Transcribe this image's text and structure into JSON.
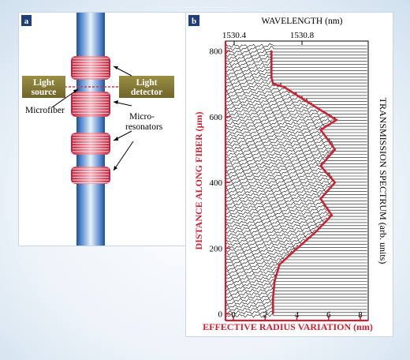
{
  "panel_a": {
    "badge": "a",
    "light_source": [
      "Light",
      "source"
    ],
    "light_detector": [
      "Light",
      "detector"
    ],
    "microfiber": "Microfiber",
    "microresonators": [
      "Micro-",
      "resonators"
    ],
    "colors": {
      "fiber_core": "#3a6fb5",
      "resonator": "#d8354a",
      "label_box": "#8a7d35",
      "label_text": "#ffffff"
    }
  },
  "panel_b": {
    "badge": "b",
    "top_axis_title": "WAVELENGTH (nm)",
    "top_ticks": [
      "1530.4",
      "1530.8"
    ],
    "right_title": "TRANSMISSION SPECTRUM (arb. units)",
    "colors": {
      "axis_red": "#cc2233",
      "spectra": "#111111"
    }
  },
  "chart_data": {
    "type": "line",
    "x": [
      2.4,
      2.4,
      2.4,
      2.5,
      3.2,
      4.5,
      5.5,
      6.5,
      5.5,
      6.4,
      5.5,
      6.4,
      5.5,
      6.2,
      5.2,
      3.8,
      2.9,
      2.6,
      2.5,
      2.5
    ],
    "y": [
      800,
      750,
      720,
      700,
      690,
      650,
      620,
      590,
      560,
      500,
      450,
      400,
      350,
      300,
      250,
      190,
      150,
      100,
      50,
      0
    ],
    "series": [
      {
        "name": "",
        "values": [
          2.4,
          2.4,
          2.4,
          2.5,
          3.2,
          4.5,
          5.5,
          6.5,
          5.5,
          6.4,
          5.5,
          6.4,
          5.5,
          6.2,
          5.2,
          3.8,
          2.9,
          2.6,
          2.5,
          2.5
        ]
      }
    ],
    "title": "",
    "xlabel": "EFFECTIVE RADIUS VARIATION (nm)",
    "ylabel": "DISTANCE ALONG FIBER (μm)",
    "xlim": [
      -0.5,
      8.5
    ],
    "ylim": [
      -20,
      830
    ],
    "xticks": [
      "0",
      "2",
      "4",
      "6",
      "8"
    ],
    "yticks": [
      "0",
      "200",
      "400",
      "600",
      "800"
    ],
    "grid": false
  }
}
